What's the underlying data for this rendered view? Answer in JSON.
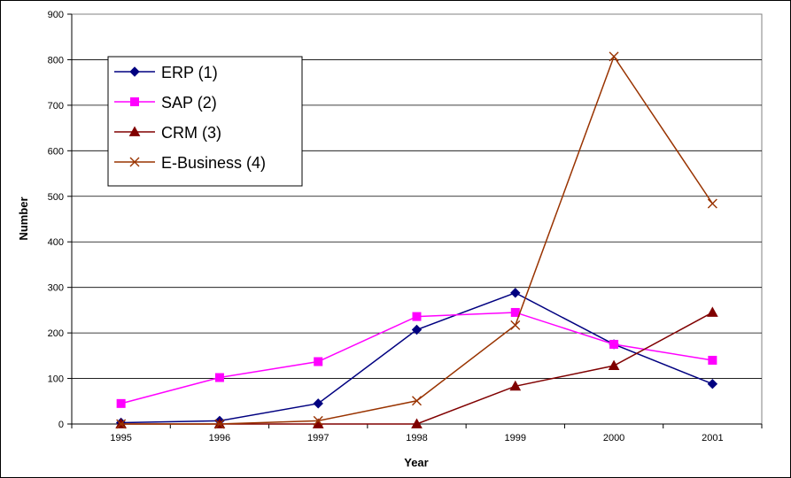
{
  "chart_data": {
    "type": "line",
    "title": "",
    "xlabel": "Year",
    "ylabel": "Number",
    "x": [
      "1995",
      "1996",
      "1997",
      "1998",
      "1999",
      "2000",
      "2001"
    ],
    "ylim": [
      0,
      900
    ],
    "yticks": [
      0,
      100,
      200,
      300,
      400,
      500,
      600,
      700,
      800,
      900
    ],
    "grid": "horizontal",
    "legend": "top-left",
    "series": [
      {
        "name": "ERP (1)",
        "color": "#000080",
        "marker": "diamond",
        "values": [
          3,
          7,
          45,
          207,
          288,
          175,
          88
        ]
      },
      {
        "name": "SAP (2)",
        "color": "#ff00ff",
        "marker": "square",
        "values": [
          45,
          102,
          137,
          236,
          245,
          175,
          140
        ]
      },
      {
        "name": "CRM (3)",
        "color": "#800000",
        "marker": "triangle",
        "values": [
          0,
          0,
          0,
          0,
          83,
          128,
          245
        ]
      },
      {
        "name": "E-Business (4)",
        "color": "#993300",
        "marker": "cross",
        "values": [
          0,
          0,
          7,
          51,
          217,
          807,
          484
        ]
      }
    ]
  }
}
